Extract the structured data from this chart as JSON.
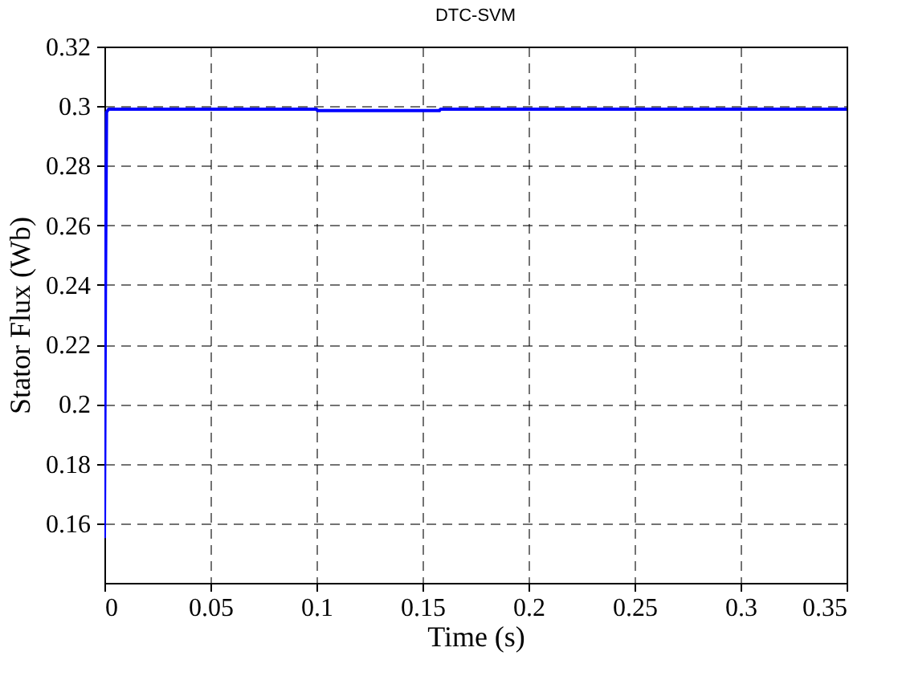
{
  "chart_data": {
    "type": "line",
    "title": "DTC-SVM",
    "xlabel": "Time (s)",
    "ylabel": "Stator Flux (Wb)",
    "x": [
      0,
      0.0005,
      0.001,
      0.002,
      0.1,
      0.1005,
      0.158,
      0.1585,
      0.35
    ],
    "series": [
      {
        "color": "#0000ff",
        "values": [
          0.155,
          0.24,
          0.298,
          0.299,
          0.299,
          0.2985,
          0.2985,
          0.299,
          0.299
        ]
      }
    ],
    "xlim": [
      0,
      0.35
    ],
    "xticks": [
      0,
      0.05,
      0.1,
      0.15,
      0.2,
      0.25,
      0.3,
      0.35
    ],
    "ylim": [
      0.14,
      0.32
    ],
    "yticks": [
      0.16,
      0.18,
      0.2,
      0.22,
      0.24,
      0.26,
      0.28,
      0.3,
      0.32
    ],
    "grid": true,
    "line_style": "solid",
    "marker": "none"
  }
}
